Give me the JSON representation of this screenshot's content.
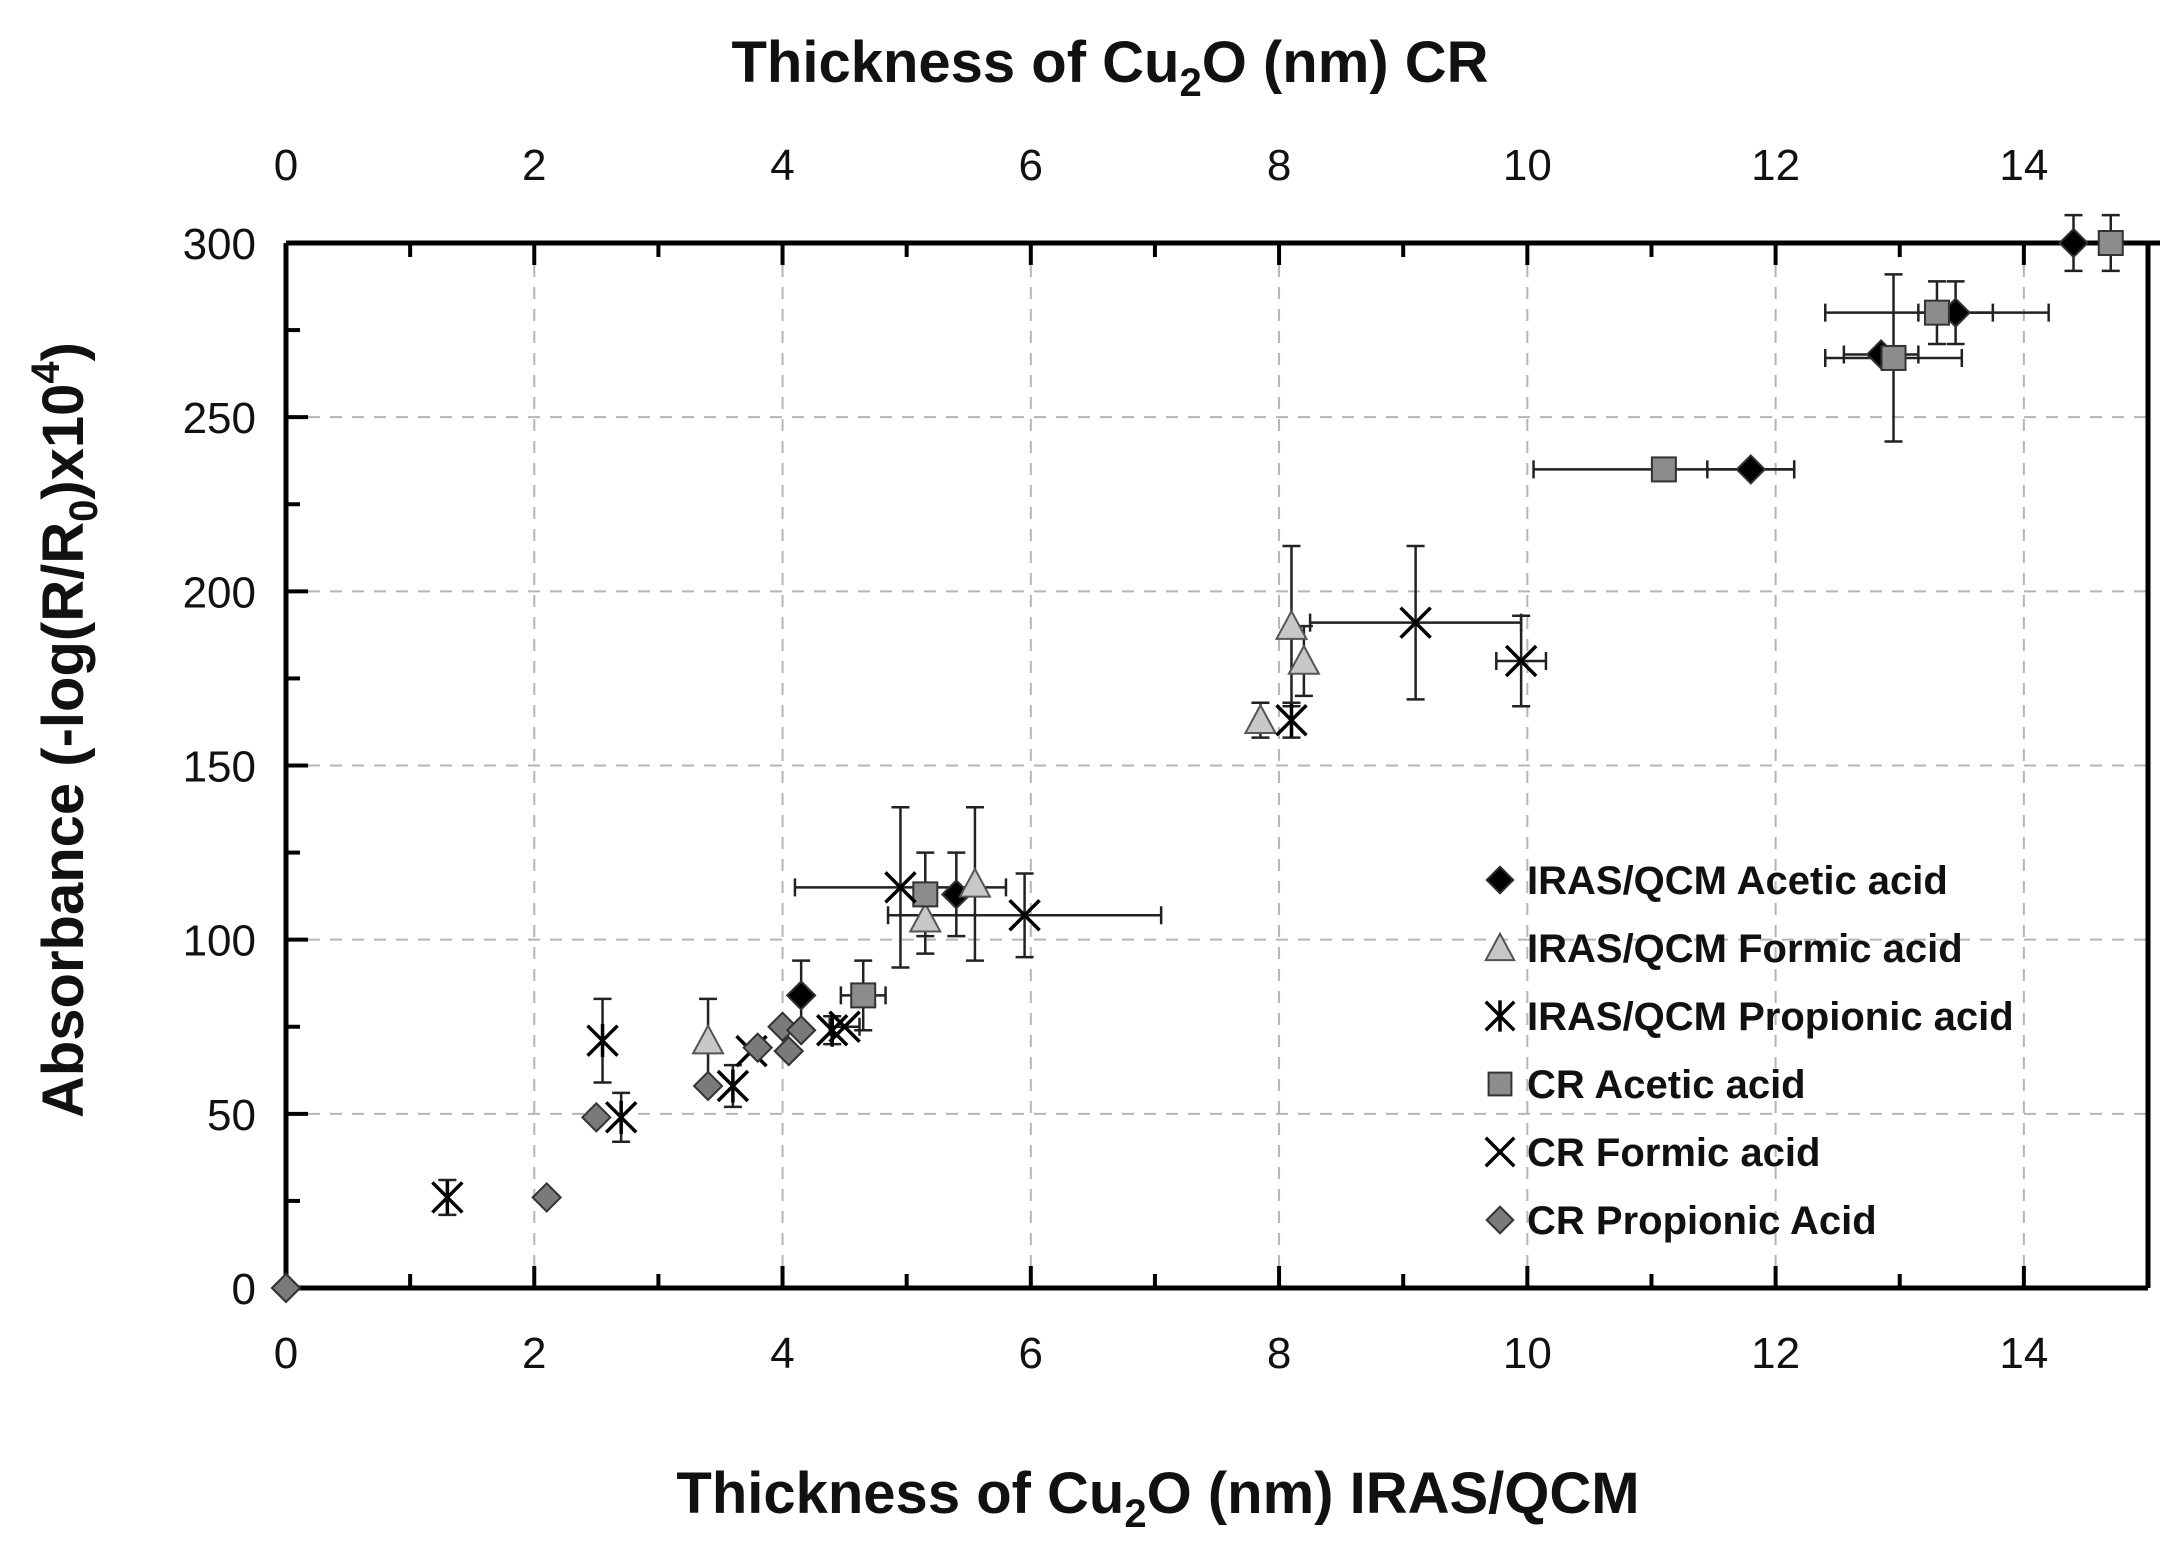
{
  "chart_data": {
    "type": "scatter",
    "top_title": {
      "pre": "Thickness of Cu",
      "sub": "2",
      "post": "O (nm) CR"
    },
    "xlabel": {
      "pre": "Thickness of Cu",
      "sub": "2",
      "post": "O (nm) IRAS/QCM"
    },
    "ylabel": {
      "pre": "Absorbance (-log(R/R",
      "sub": "0",
      "mid": ")x10",
      "sup": "4",
      "post": ")"
    },
    "xlim": [
      0,
      15
    ],
    "ylim": [
      0,
      300
    ],
    "x_ticks": [
      "0",
      "2",
      "4",
      "6",
      "8",
      "10",
      "12",
      "14"
    ],
    "top_ticks": [
      "0",
      "2",
      "4",
      "6",
      "8",
      "10",
      "12",
      "14"
    ],
    "y_ticks": [
      "0",
      "50",
      "100",
      "150",
      "200",
      "250",
      "300"
    ],
    "grid": true,
    "legend_position": "lower-right",
    "colors": {
      "black": "#000000",
      "light_gray": "#c8c8c8",
      "mid_gray": "#8c8c8c",
      "dark_gray": "#7a7a7a",
      "grid": "#b5b5b5"
    },
    "series": [
      {
        "name": "IRAS/QCM Acetic acid",
        "marker": "diamond",
        "color": "black",
        "points": [
          {
            "x": 0,
            "y": 0
          },
          {
            "x": 4.15,
            "y": 84,
            "yerr": 10
          },
          {
            "x": 5.4,
            "y": 113,
            "yerr": 12
          },
          {
            "x": 11.8,
            "y": 235,
            "xerr": 0.35
          },
          {
            "x": 12.85,
            "y": 268,
            "xerr": 0.3
          },
          {
            "x": 13.45,
            "y": 280,
            "xerr": 0.3,
            "yerr": 9
          },
          {
            "x": 14.4,
            "y": 300,
            "yerr": 8
          }
        ]
      },
      {
        "name": "IRAS/QCM Formic acid",
        "marker": "triangle",
        "color": "light_gray",
        "points": [
          {
            "x": 3.4,
            "y": 71,
            "yerr": 12
          },
          {
            "x": 5.15,
            "y": 106,
            "yerr": 10
          },
          {
            "x": 5.55,
            "y": 116,
            "yerr": 22
          },
          {
            "x": 7.85,
            "y": 163,
            "yerr": 5
          },
          {
            "x": 8.1,
            "y": 190,
            "yerr": 23
          },
          {
            "x": 8.2,
            "y": 180,
            "yerr": 10
          }
        ]
      },
      {
        "name": "IRAS/QCM Propionic acid",
        "marker": "asterisk",
        "color": "black",
        "points": [
          {
            "x": 1.3,
            "y": 26,
            "yerr": 5
          },
          {
            "x": 2.55,
            "y": 71,
            "yerr": 12
          },
          {
            "x": 2.7,
            "y": 49,
            "yerr": 7
          },
          {
            "x": 3.6,
            "y": 58,
            "yerr": 6
          },
          {
            "x": 4.4,
            "y": 74,
            "yerr": 4
          },
          {
            "x": 8.1,
            "y": 163,
            "yerr": 5
          }
        ]
      },
      {
        "name": "CR Acetic acid",
        "marker": "square",
        "color": "mid_gray",
        "points": [
          {
            "x": 4.65,
            "y": 84,
            "xerr": 0.18,
            "yerr": 10
          },
          {
            "x": 5.15,
            "y": 113,
            "yerr": 12
          },
          {
            "x": 11.1,
            "y": 235,
            "xerr": 1.05
          },
          {
            "x": 12.95,
            "y": 267,
            "xerr": 0.55,
            "yerr": 24
          },
          {
            "x": 13.3,
            "y": 280,
            "xerr": 0.9,
            "yerr": 9
          },
          {
            "x": 14.7,
            "y": 300,
            "yerr": 8
          }
        ]
      },
      {
        "name": "CR Formic acid",
        "marker": "x",
        "color": "black",
        "points": [
          {
            "x": 3.75,
            "y": 68
          },
          {
            "x": 4.5,
            "y": 75,
            "xerr": 0.12
          },
          {
            "x": 4.95,
            "y": 115,
            "xerr": 0.85,
            "yerr": 23
          },
          {
            "x": 5.95,
            "y": 107,
            "xerr": 1.1,
            "yerr": 12
          },
          {
            "x": 9.1,
            "y": 191,
            "xerr": 0.85,
            "yerr": 22
          },
          {
            "x": 9.95,
            "y": 180,
            "xerr": 0.2,
            "yerr": 13
          }
        ]
      },
      {
        "name": "CR Propionic Acid",
        "marker": "diamond",
        "color": "dark_gray",
        "points": [
          {
            "x": 0,
            "y": 0
          },
          {
            "x": 2.1,
            "y": 26
          },
          {
            "x": 2.5,
            "y": 49
          },
          {
            "x": 3.4,
            "y": 58
          },
          {
            "x": 3.8,
            "y": 69
          },
          {
            "x": 4.0,
            "y": 75
          },
          {
            "x": 4.05,
            "y": 68
          },
          {
            "x": 4.15,
            "y": 74
          }
        ]
      }
    ]
  }
}
